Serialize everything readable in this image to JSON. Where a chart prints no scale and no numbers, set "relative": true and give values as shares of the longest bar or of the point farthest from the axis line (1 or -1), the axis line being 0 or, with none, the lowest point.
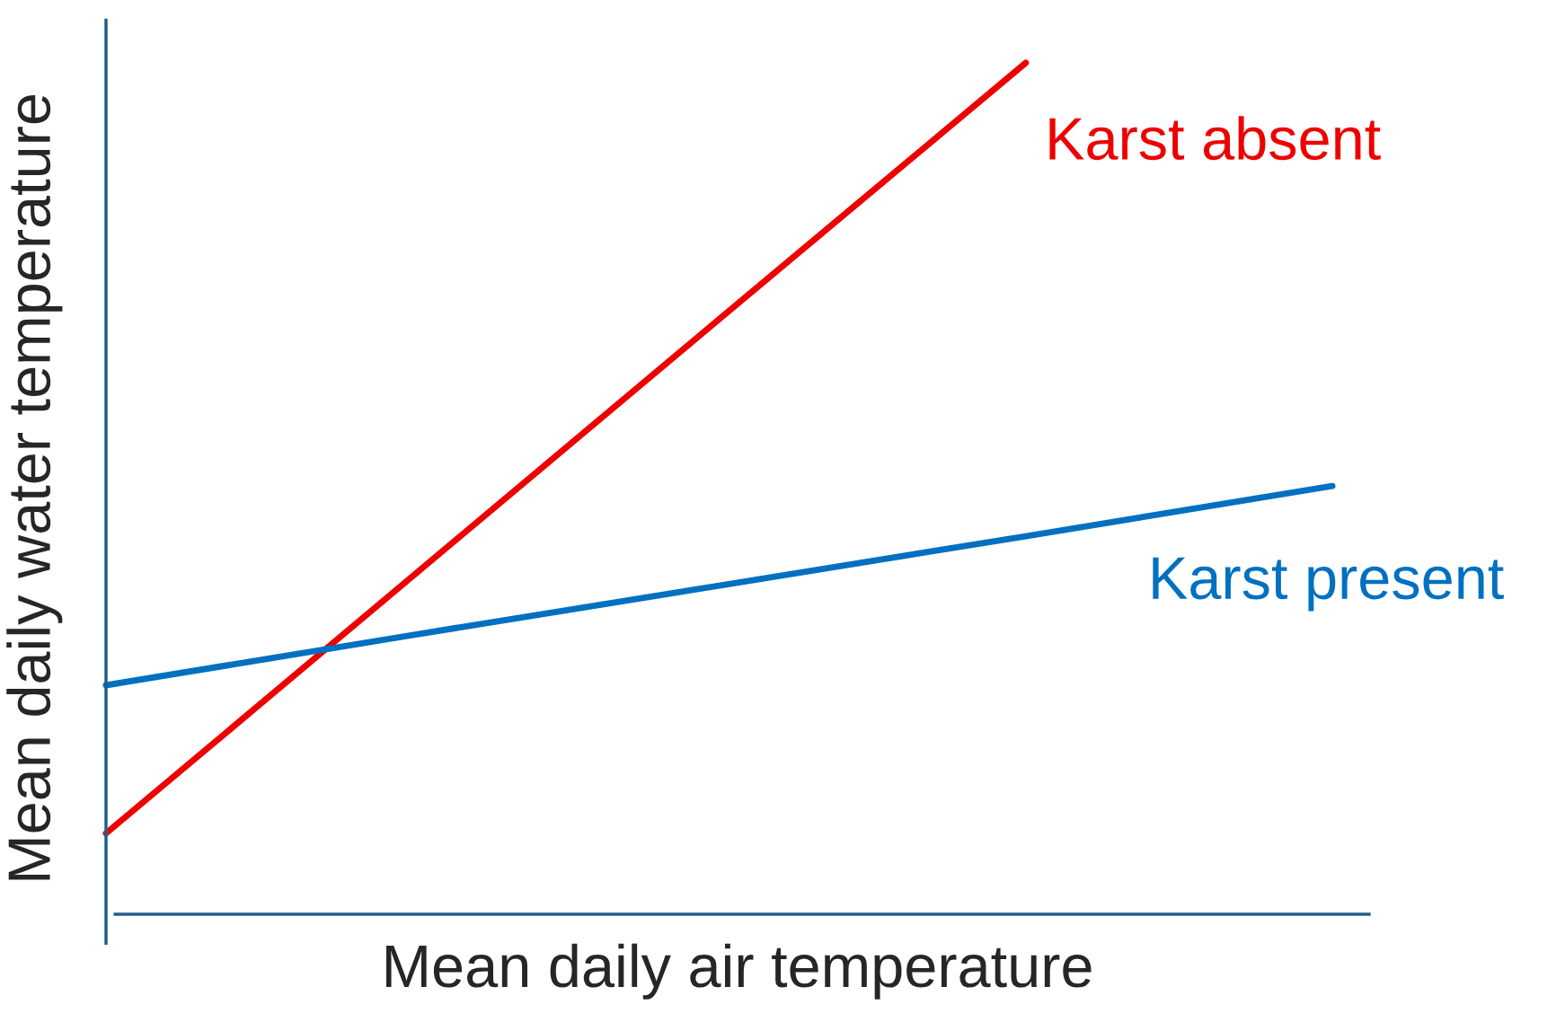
{
  "chart_data": {
    "type": "line",
    "relative": true,
    "xlabel": "Mean daily air temperature",
    "ylabel": "Mean daily water temperature",
    "legend": false,
    "marker": "none",
    "line_style": "solid",
    "categories": [
      null,
      null,
      null,
      null,
      null
    ],
    "series": [
      {
        "name": "Karst absent",
        "color": "#ee0000",
        "values": [
          0.095,
          0.397,
          0.699,
          1,
          null
        ]
      },
      {
        "name": "Karst present",
        "color": "#0070c0",
        "values": [
          0.269,
          0.328,
          0.386,
          0.444,
          0.503
        ]
      }
    ]
  }
}
